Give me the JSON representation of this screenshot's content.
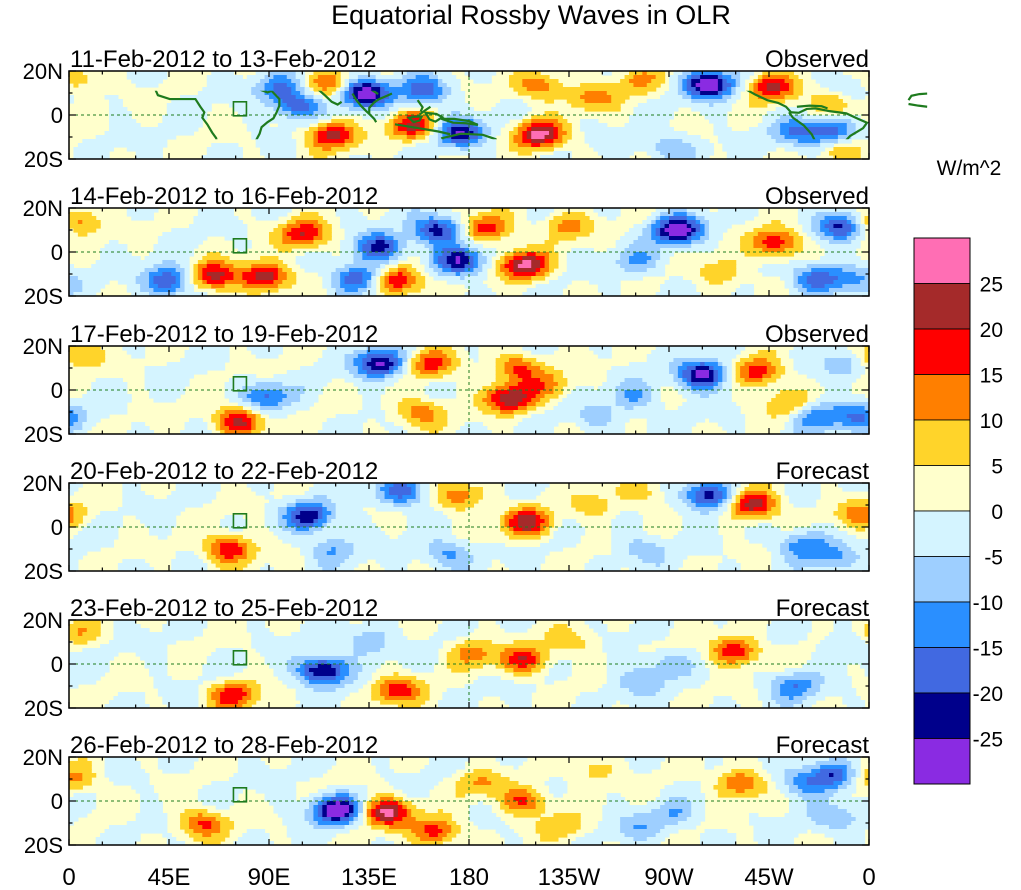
{
  "chart_data": {
    "type": "heatmap",
    "title": "Equatorial Rossby Waves in OLR",
    "units_label": "W/m^2",
    "y_tick_labels": [
      "20N",
      "0",
      "20S"
    ],
    "x_tick_labels": [
      "0",
      "45E",
      "90E",
      "135E",
      "180",
      "135W",
      "90W",
      "45W",
      "0"
    ],
    "x_tick_values_lon": [
      0,
      45,
      90,
      135,
      180,
      225,
      270,
      315,
      360
    ],
    "lon_range": [
      0,
      360
    ],
    "lat_range": [
      -20,
      20
    ],
    "colorbar": {
      "levels": [
        -25,
        -20,
        -15,
        -10,
        -5,
        0,
        5,
        10,
        15,
        20,
        25
      ],
      "level_labels": [
        "25",
        "20",
        "15",
        "10",
        "5",
        "0",
        "-5",
        "-10",
        "-15",
        "-20",
        "-25"
      ],
      "colors_top_to_bottom": [
        "#ff6eb4",
        "#a52a2a",
        "#ff0000",
        "#ff7f00",
        "#ffd42a",
        "#ffffcc",
        "#d4f4ff",
        "#9ecfff",
        "#2a8fff",
        "#4169e1",
        "#00008b",
        "#8a2be2"
      ]
    },
    "panels": [
      {
        "date_range": "11-Feb-2012 to 13-Feb-2012",
        "status": "Observed",
        "blobs": [
          [
            95,
            12,
            -14
          ],
          [
            117,
            14,
            14
          ],
          [
            133,
            10,
            -30
          ],
          [
            155,
            -5,
            20
          ],
          [
            176,
            -8,
            -24
          ],
          [
            118,
            -9,
            22
          ],
          [
            103,
            4,
            -18
          ],
          [
            160,
            11,
            -18
          ],
          [
            212,
            -9,
            26
          ],
          [
            212,
            13,
            14
          ],
          [
            236,
            8,
            12
          ],
          [
            256,
            16,
            10
          ],
          [
            270,
            -15,
            -10
          ],
          [
            288,
            14,
            -30
          ],
          [
            316,
            13,
            20
          ],
          [
            328,
            -8,
            -14
          ],
          [
            344,
            -8,
            -18
          ],
          [
            352,
            14,
            -10
          ],
          [
            344,
            5,
            12
          ],
          [
            362,
            16,
            12
          ],
          [
            348,
            -16,
            10
          ]
        ]
      },
      {
        "date_range": "14-Feb-2012 to 16-Feb-2012",
        "status": "Observed",
        "blobs": [
          [
            45,
            -13,
            -22
          ],
          [
            65,
            -11,
            22
          ],
          [
            88,
            -11,
            24
          ],
          [
            106,
            8,
            20
          ],
          [
            130,
            -12,
            -20
          ],
          [
            148,
            -13,
            22
          ],
          [
            140,
            2,
            -22
          ],
          [
            166,
            10,
            -24
          ],
          [
            176,
            -4,
            -24
          ],
          [
            188,
            11,
            18
          ],
          [
            205,
            -6,
            26
          ],
          [
            224,
            12,
            12
          ],
          [
            256,
            -4,
            -10
          ],
          [
            274,
            10,
            -30
          ],
          [
            293,
            -9,
            10
          ],
          [
            318,
            4,
            20
          ],
          [
            336,
            -12,
            -18
          ],
          [
            348,
            12,
            -22
          ],
          [
            362,
            14,
            16
          ],
          [
            352,
            -12,
            -10
          ]
        ]
      },
      {
        "date_range": "17-Feb-2012 to 19-Feb-2012",
        "status": "Observed",
        "blobs": [
          [
            76,
            -14,
            22
          ],
          [
            89,
            -3,
            -16
          ],
          [
            140,
            12,
            -26
          ],
          [
            163,
            12,
            16
          ],
          [
            158,
            -10,
            14
          ],
          [
            198,
            -4,
            24
          ],
          [
            202,
            10,
            16
          ],
          [
            216,
            2,
            10
          ],
          [
            255,
            -3,
            -10
          ],
          [
            285,
            7,
            -28
          ],
          [
            310,
            8,
            18
          ],
          [
            322,
            -6,
            10
          ],
          [
            336,
            -12,
            -14
          ],
          [
            350,
            12,
            -10
          ],
          [
            362,
            16,
            14
          ],
          [
            355,
            -12,
            -14
          ],
          [
            238,
            -12,
            -8
          ]
        ]
      },
      {
        "date_range": "20-Feb-2012 to 22-Feb-2012",
        "status": "Forecast",
        "blobs": [
          [
            72,
            -10,
            20
          ],
          [
            108,
            5,
            -22
          ],
          [
            118,
            -10,
            -10
          ],
          [
            150,
            16,
            -18
          ],
          [
            170,
            -12,
            -12
          ],
          [
            176,
            14,
            14
          ],
          [
            206,
            2,
            22
          ],
          [
            258,
            -10,
            -8
          ],
          [
            288,
            14,
            -24
          ],
          [
            308,
            10,
            24
          ],
          [
            330,
            -8,
            -14
          ],
          [
            344,
            -14,
            -10
          ],
          [
            356,
            6,
            12
          ],
          [
            236,
            10,
            8
          ],
          [
            258,
            16,
            8
          ]
        ]
      },
      {
        "date_range": "23-Feb-2012 to 25-Feb-2012",
        "status": "Forecast",
        "blobs": [
          [
            74,
            -14,
            18
          ],
          [
            114,
            -3,
            -28
          ],
          [
            148,
            -12,
            18
          ],
          [
            135,
            10,
            -10
          ],
          [
            205,
            2,
            18
          ],
          [
            182,
            5,
            12
          ],
          [
            256,
            -8,
            -8
          ],
          [
            268,
            0,
            -8
          ],
          [
            300,
            6,
            20
          ],
          [
            326,
            -10,
            -14
          ],
          [
            352,
            10,
            -8
          ],
          [
            362,
            14,
            10
          ],
          [
            226,
            10,
            8
          ]
        ]
      },
      {
        "date_range": "26-Feb-2012 to 28-Feb-2012",
        "status": "Forecast",
        "blobs": [
          [
            60,
            -10,
            16
          ],
          [
            120,
            -4,
            -30
          ],
          [
            143,
            -5,
            26
          ],
          [
            165,
            -14,
            18
          ],
          [
            185,
            8,
            10
          ],
          [
            205,
            0,
            16
          ],
          [
            256,
            -12,
            -8
          ],
          [
            272,
            -6,
            -8
          ],
          [
            302,
            8,
            16
          ],
          [
            330,
            8,
            -12
          ],
          [
            344,
            12,
            -20
          ],
          [
            346,
            -8,
            -10
          ],
          [
            362,
            10,
            12
          ],
          [
            236,
            14,
            8
          ],
          [
            222,
            -12,
            8
          ]
        ]
      }
    ]
  }
}
